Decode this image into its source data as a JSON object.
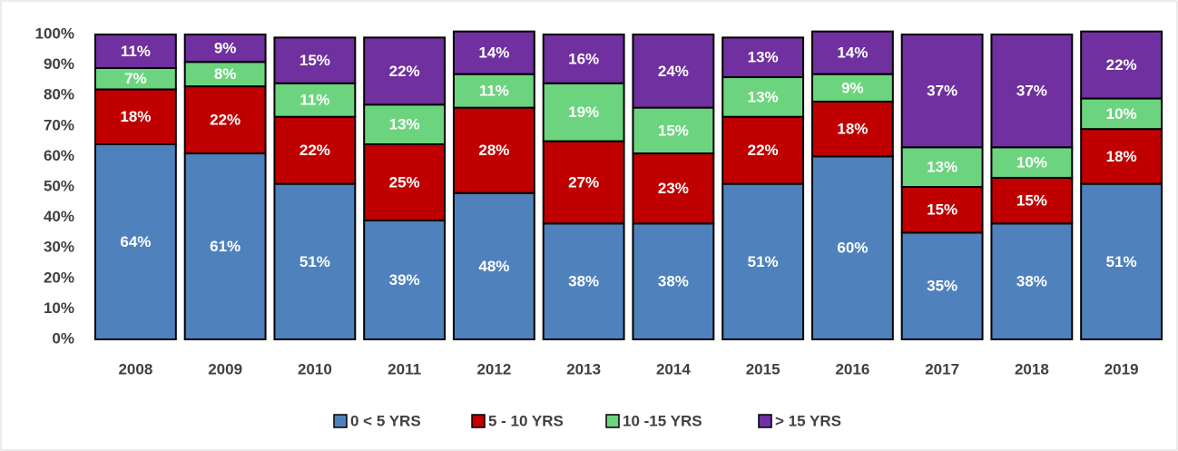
{
  "chart_data": {
    "type": "stacked-bar",
    "categories": [
      "2008",
      "2009",
      "2010",
      "2011",
      "2012",
      "2013",
      "2014",
      "2015",
      "2016",
      "2017",
      "2018",
      "2019"
    ],
    "series": [
      {
        "name": "0 < 5 YRS",
        "color": "#4f81bd",
        "values": [
          64,
          61,
          51,
          39,
          48,
          38,
          38,
          51,
          60,
          35,
          38,
          51
        ],
        "value_labels": [
          "64%",
          "61%",
          "51%",
          "39%",
          "48%",
          "38%",
          "38%",
          "51%",
          "60%",
          "35%",
          "38%",
          "51%"
        ]
      },
      {
        "name": "5 - 10 YRS",
        "color": "#c00000",
        "values": [
          18,
          22,
          22,
          25,
          28,
          27,
          23,
          22,
          18,
          15,
          15,
          18
        ],
        "value_labels": [
          "18%",
          "22%",
          "22%",
          "25%",
          "28%",
          "27%",
          "23%",
          "22%",
          "18%",
          "15%",
          "15%",
          "18%"
        ]
      },
      {
        "name": "10 -15 YRS",
        "color": "#6cd47e",
        "values": [
          7,
          8,
          11,
          13,
          11,
          19,
          15,
          13,
          9,
          13,
          10,
          10
        ],
        "value_labels": [
          "7%",
          "8%",
          "11%",
          "13%",
          "11%",
          "19%",
          "15%",
          "13%",
          "9%",
          "13%",
          "10%",
          "10%"
        ]
      },
      {
        "name": "> 15 YRS",
        "color": "#7030a0",
        "values": [
          11,
          9,
          15,
          22,
          14,
          16,
          24,
          13,
          14,
          37,
          37,
          22
        ],
        "value_labels": [
          "11%",
          "9%",
          "15%",
          "22%",
          "14%",
          "16%",
          "24%",
          "13%",
          "14%",
          "37%",
          "37%",
          "22%"
        ]
      }
    ],
    "ylim": [
      0,
      100
    ],
    "yticks": [
      {
        "value": 0,
        "label": "0%"
      },
      {
        "value": 10,
        "label": "10%"
      },
      {
        "value": 20,
        "label": "20%"
      },
      {
        "value": 30,
        "label": "30%"
      },
      {
        "value": 40,
        "label": "40%"
      },
      {
        "value": 50,
        "label": "50%"
      },
      {
        "value": 60,
        "label": "60%"
      },
      {
        "value": 70,
        "label": "70%"
      },
      {
        "value": 80,
        "label": "80%"
      },
      {
        "value": 90,
        "label": "90%"
      },
      {
        "value": 100,
        "label": "100%"
      }
    ],
    "legend": "bottom"
  }
}
